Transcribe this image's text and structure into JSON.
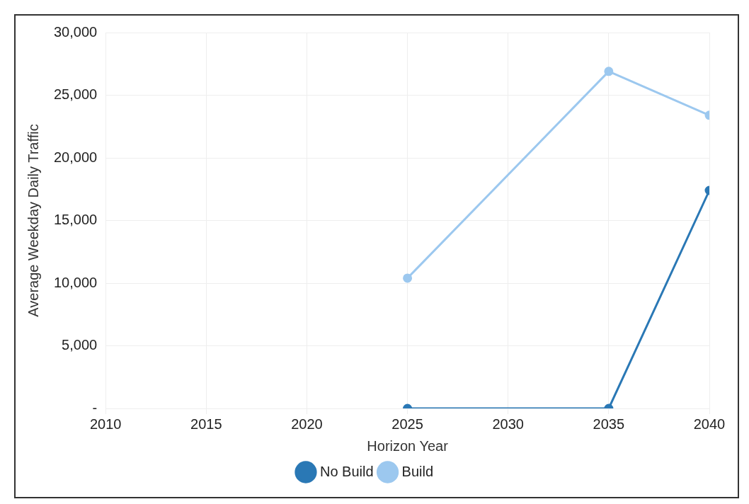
{
  "chart_data": {
    "type": "line",
    "xlabel": "Horizon Year",
    "ylabel": "Average Weekday Daily Traffic",
    "x": [
      2025,
      2035,
      2040
    ],
    "series": [
      {
        "name": "No Build",
        "color": "#2a78b5",
        "values": [
          0,
          0,
          17400
        ]
      },
      {
        "name": "Build",
        "color": "#9cc8ef",
        "values": [
          10400,
          26900,
          23400
        ]
      }
    ],
    "xlim": [
      2010,
      2040
    ],
    "xticks": [
      2010,
      2015,
      2020,
      2025,
      2030,
      2035,
      2040
    ],
    "ylim": [
      0,
      30000
    ],
    "yticks": [
      {
        "value": 0,
        "label": "-"
      },
      {
        "value": 5000,
        "label": "5,000"
      },
      {
        "value": 10000,
        "label": "10,000"
      },
      {
        "value": 15000,
        "label": "15,000"
      },
      {
        "value": 20000,
        "label": "20,000"
      },
      {
        "value": 25000,
        "label": "25,000"
      },
      {
        "value": 30000,
        "label": "30,000"
      }
    ],
    "grid": true,
    "legend": "bottom",
    "marker": "circle",
    "line_style": "solid"
  }
}
